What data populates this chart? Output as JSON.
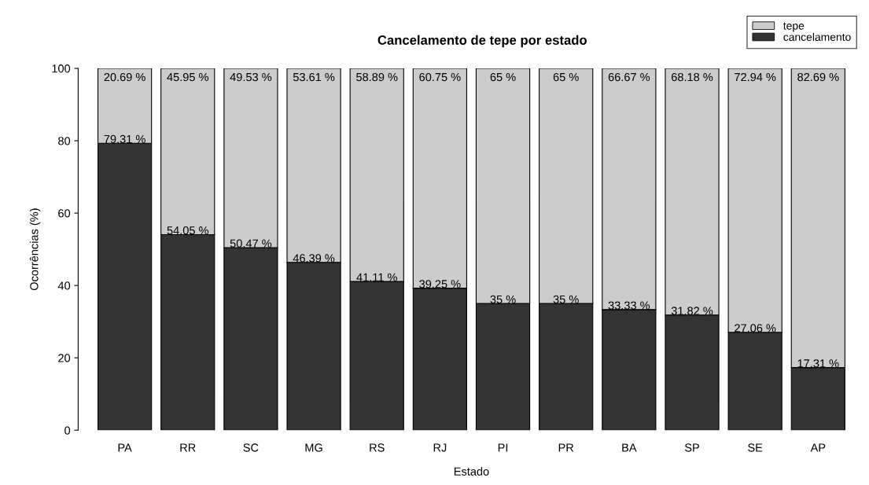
{
  "chart_data": {
    "type": "bar",
    "title": "Cancelamento de tepe por estado",
    "xlabel": "Estado",
    "ylabel": "Ocorrências (%)",
    "categories": [
      "PA",
      "RR",
      "SC",
      "MG",
      "RS",
      "RJ",
      "PI",
      "PR",
      "BA",
      "SP",
      "SE",
      "AP"
    ],
    "stacked": true,
    "ylim": [
      0,
      100
    ],
    "yticks": [
      0,
      20,
      40,
      60,
      80,
      100
    ],
    "grid": false,
    "legend": "top right",
    "series": [
      {
        "name": "cancelamento",
        "color": "#333333",
        "values": [
          79.31,
          54.05,
          50.47,
          46.39,
          41.11,
          39.25,
          35,
          35,
          33.33,
          31.82,
          27.06,
          17.31
        ],
        "value_labels": [
          "79.31 %",
          "54.05 %",
          "50.47 %",
          "46.39 %",
          "41.11 %",
          "39.25 %",
          "35 %",
          "35 %",
          "33.33 %",
          "31.82 %",
          "27.06 %",
          "17.31 %"
        ]
      },
      {
        "name": "tepe",
        "color": "#cccccc",
        "values": [
          20.69,
          45.95,
          49.53,
          53.61,
          58.89,
          60.75,
          65,
          65,
          66.67,
          68.18,
          72.94,
          82.69
        ],
        "value_labels": [
          "20.69 %",
          "45.95 %",
          "49.53 %",
          "53.61 %",
          "58.89 %",
          "60.75 %",
          "65 %",
          "65 %",
          "66.67 %",
          "68.18 %",
          "72.94 %",
          "82.69 %"
        ]
      }
    ]
  }
}
